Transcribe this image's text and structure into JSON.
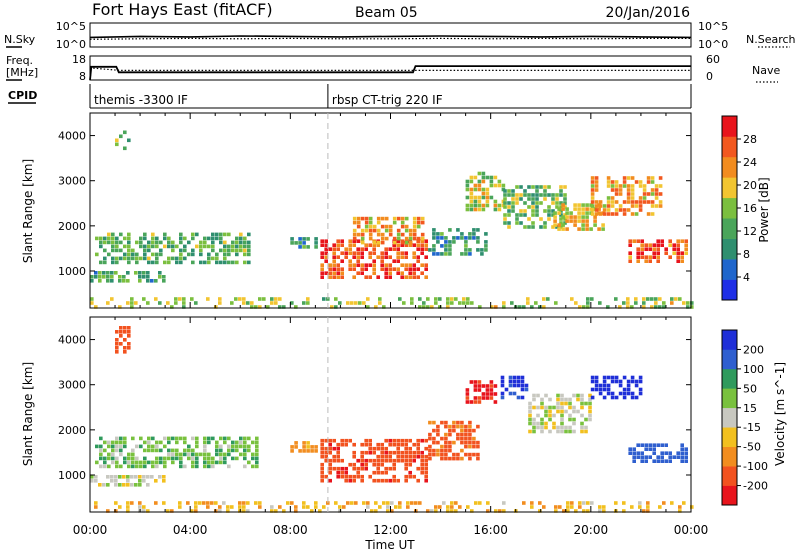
{
  "header": {
    "station": "Fort Hays East (fitACF)",
    "beam": "Beam 05",
    "date": "20/Jan/2016"
  },
  "colors": {
    "frame": "#000000",
    "power_scale": [
      "#1f2fe6",
      "#1f66cc",
      "#2f8f6f",
      "#4aa55a",
      "#7bbf3f",
      "#f2c531",
      "#f28c1f",
      "#f2581f",
      "#e8141c"
    ],
    "velocity_scale": [
      "#1f2fd8",
      "#2f5fcf",
      "#2f9a5c",
      "#79c13e",
      "#c8c8c0",
      "#f2c01f",
      "#f28d1f",
      "#f2521f",
      "#e8141c"
    ]
  },
  "chart_data": [
    {
      "type": "line",
      "name": "noise-panel",
      "left_label": "N.Sky",
      "right_label": "N.Search",
      "left_ticks": [
        "10^5",
        "10^0"
      ],
      "right_ticks": [
        "10^5",
        "10^0"
      ],
      "x": [
        0,
        2,
        4,
        6,
        8,
        10,
        12,
        14,
        16,
        18,
        20,
        22,
        24
      ],
      "series": [
        {
          "name": "N.Sky",
          "style": "solid",
          "values": [
            2.0,
            2.2,
            2.1,
            2.3,
            2.2,
            2.1,
            2.2,
            2.3,
            2.2,
            2.1,
            2.2,
            2.1,
            2.0
          ]
        },
        {
          "name": "N.Search",
          "style": "dotted",
          "values": [
            1.6,
            1.7,
            1.8,
            1.7,
            1.8,
            1.7,
            1.7,
            1.8,
            1.7,
            1.8,
            1.7,
            1.8,
            1.8
          ]
        }
      ],
      "ylim": [
        0,
        5
      ]
    },
    {
      "type": "line",
      "name": "freq-nave-panel",
      "left_label_1": "Freq.",
      "left_label_2": "[MHz]",
      "right_label": "Nave",
      "left_ticks": [
        "18",
        "8"
      ],
      "right_ticks": [
        "60",
        "0"
      ],
      "series": [
        {
          "name": "Freq.",
          "style": "solid",
          "x": [
            0,
            0.05,
            1.05,
            1.15,
            12.9,
            13.0,
            24
          ],
          "values": [
            8,
            13.5,
            13.5,
            11.2,
            11.2,
            13.8,
            13.8
          ]
        },
        {
          "name": "Nave",
          "style": "dotted",
          "x": [
            0,
            0.05,
            1.2,
            24
          ],
          "values": [
            0,
            30,
            24,
            24
          ]
        }
      ],
      "left_ylim": [
        8,
        18
      ],
      "right_ylim": [
        0,
        60
      ]
    },
    {
      "type": "table",
      "name": "cpid-row",
      "label": "CPID",
      "programs": [
        {
          "start_hour": 0.0,
          "text": "themis -3300 IF"
        },
        {
          "start_hour": 9.5,
          "text": "rbsp CT-trig 220 IF"
        }
      ]
    },
    {
      "type": "heatmap",
      "name": "power-panel",
      "ylabel": "Slant Range [km]",
      "y_ticks": [
        1000,
        2000,
        3000,
        4000
      ],
      "ylim": [
        180,
        4500
      ],
      "xlim": [
        0,
        24
      ],
      "colorbar_label": "Power [dB]",
      "colorbar_ticks": [
        4,
        8,
        12,
        16,
        20,
        24,
        28
      ],
      "colorbar_range": [
        0,
        32
      ],
      "dashed_vline_hour": 9.5,
      "regions": [
        {
          "x": [
            0.2,
            6.4
          ],
          "y": [
            1150,
            1850
          ],
          "level": 0.4
        },
        {
          "x": [
            0.0,
            3.0
          ],
          "y": [
            750,
            1000
          ],
          "level": 0.35
        },
        {
          "x": [
            1.0,
            1.5
          ],
          "y": [
            3700,
            4200
          ],
          "level": 0.45
        },
        {
          "x": [
            8.0,
            9.0
          ],
          "y": [
            1550,
            1750
          ],
          "level": 0.3
        },
        {
          "x": [
            9.2,
            13.5
          ],
          "y": [
            850,
            1700
          ],
          "level": 0.85
        },
        {
          "x": [
            10.5,
            13.3
          ],
          "y": [
            1600,
            2200
          ],
          "level": 0.7
        },
        {
          "x": [
            13.5,
            15.8
          ],
          "y": [
            1400,
            1950
          ],
          "level": 0.3
        },
        {
          "x": [
            15.0,
            16.5
          ],
          "y": [
            2400,
            3200
          ],
          "level": 0.55
        },
        {
          "x": [
            16.5,
            19.0
          ],
          "y": [
            2000,
            2900
          ],
          "level": 0.45
        },
        {
          "x": [
            18.5,
            20.5
          ],
          "y": [
            1900,
            2500
          ],
          "level": 0.6
        },
        {
          "x": [
            20.0,
            22.8
          ],
          "y": [
            2300,
            3100
          ],
          "level": 0.7
        },
        {
          "x": [
            21.5,
            23.8
          ],
          "y": [
            1200,
            1700
          ],
          "level": 0.8
        },
        {
          "x": [
            0.0,
            24.0
          ],
          "y": [
            200,
            420
          ],
          "level": 0.5
        }
      ]
    },
    {
      "type": "heatmap",
      "name": "velocity-panel",
      "ylabel": "Slant Range [km]",
      "xlabel": "Time UT",
      "x_tick_labels": [
        "00:00",
        "04:00",
        "08:00",
        "12:00",
        "16:00",
        "20:00",
        "00:00"
      ],
      "x_ticks": [
        0,
        4,
        8,
        12,
        16,
        20,
        24
      ],
      "y_ticks": [
        1000,
        2000,
        3000,
        4000
      ],
      "ylim": [
        180,
        4500
      ],
      "xlim": [
        0,
        24
      ],
      "colorbar_label": "Velocity [m s^-1]",
      "colorbar_ticks": [
        200,
        100,
        50,
        15,
        -15,
        -50,
        -100,
        -200
      ],
      "dashed_vline_hour": 9.5,
      "regions": [
        {
          "x": [
            0.2,
            6.6
          ],
          "y": [
            1150,
            1850
          ],
          "vel": 35
        },
        {
          "x": [
            0.0,
            3.0
          ],
          "y": [
            800,
            1000
          ],
          "vel": 0
        },
        {
          "x": [
            1.0,
            1.6
          ],
          "y": [
            3700,
            4300
          ],
          "vel": -150
        },
        {
          "x": [
            8.0,
            9.0
          ],
          "y": [
            1550,
            1750
          ],
          "vel": -70
        },
        {
          "x": [
            9.2,
            13.5
          ],
          "y": [
            850,
            1800
          ],
          "vel": -180
        },
        {
          "x": [
            13.5,
            15.5
          ],
          "y": [
            1400,
            2200
          ],
          "vel": -120
        },
        {
          "x": [
            15.0,
            16.2
          ],
          "y": [
            2600,
            3100
          ],
          "vel": -220
        },
        {
          "x": [
            16.4,
            17.5
          ],
          "y": [
            2700,
            3200
          ],
          "vel": 220
        },
        {
          "x": [
            17.5,
            20.0
          ],
          "y": [
            2000,
            2800
          ],
          "vel": 0
        },
        {
          "x": [
            20.0,
            22.0
          ],
          "y": [
            2700,
            3200
          ],
          "vel": 230
        },
        {
          "x": [
            21.5,
            23.8
          ],
          "y": [
            1300,
            1700
          ],
          "vel": 150
        },
        {
          "x": [
            0.0,
            24.0
          ],
          "y": [
            200,
            420
          ],
          "vel": -40
        }
      ]
    }
  ]
}
